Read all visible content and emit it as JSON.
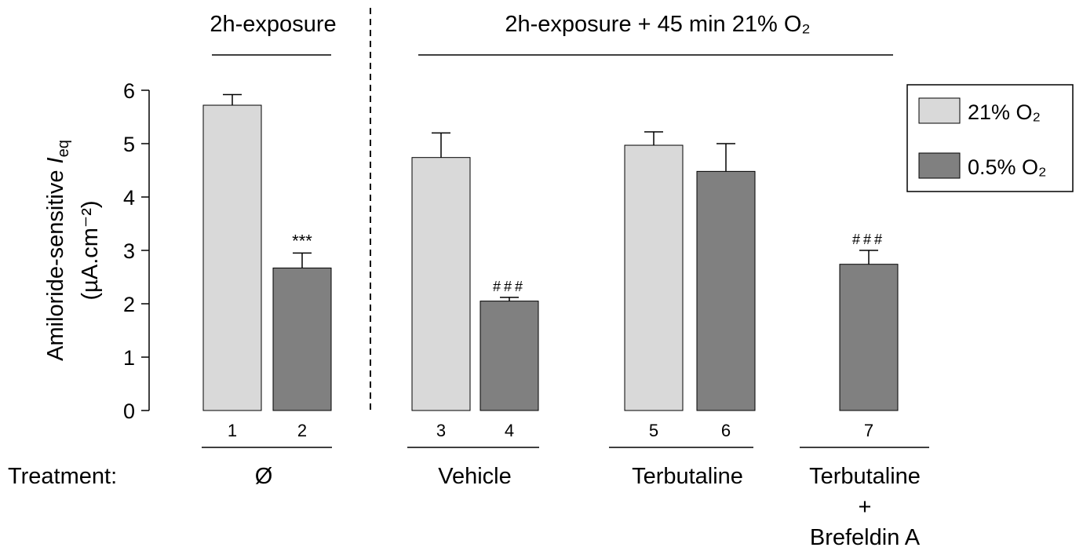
{
  "chart_data": {
    "type": "bar",
    "sections": [
      {
        "title": "2h-exposure"
      },
      {
        "title": "2h-exposure + 45 min 21% O₂"
      }
    ],
    "y_label": {
      "text": "Amiloride-sensitive ",
      "symbol": "I",
      "subscript": "eq",
      "units": "(µA.cm⁻²)"
    },
    "categories": [
      "1",
      "2",
      "3",
      "4",
      "5",
      "6",
      "7"
    ],
    "series": [
      {
        "name": "21% O₂",
        "color": "#d9d9d9",
        "values": [
          5.72,
          null,
          4.74,
          null,
          4.97,
          null,
          null
        ],
        "errors": [
          0.2,
          null,
          0.46,
          null,
          0.25,
          null,
          null
        ]
      },
      {
        "name": "0.5% O₂",
        "color": "#808080",
        "values": [
          null,
          2.67,
          null,
          2.05,
          null,
          4.48,
          2.74
        ],
        "errors": [
          null,
          0.28,
          null,
          0.07,
          null,
          0.52,
          0.26
        ]
      }
    ],
    "annotations": [
      null,
      "***",
      null,
      "###",
      null,
      null,
      "###"
    ],
    "treatment_label": "Treatment:",
    "treatments": [
      {
        "lines": [
          "Ø"
        ]
      },
      {
        "lines": [
          "Vehicle"
        ]
      },
      {
        "lines": [
          "Terbutaline"
        ]
      },
      {
        "lines": [
          "Terbutaline",
          "+",
          "Brefeldin A"
        ]
      }
    ],
    "ylim": [
      0,
      6
    ],
    "yticks": [
      0,
      1,
      2,
      3,
      4,
      5,
      6
    ],
    "grid": false,
    "legend": "upper right"
  }
}
